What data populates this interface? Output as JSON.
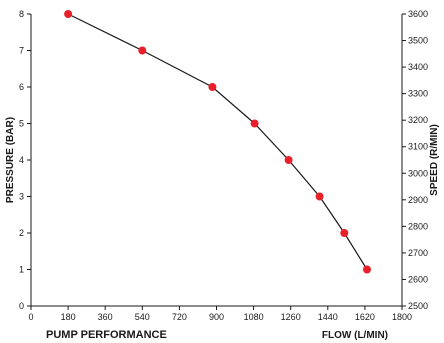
{
  "chart_data": {
    "type": "line",
    "title": "PUMP PERFORMANCE",
    "xlabel": "FLOW (L/MIN)",
    "ylabel": "PRESSURE (BAR)",
    "y2label": "SPEED (R/MIN)",
    "xlim": [
      0,
      1800
    ],
    "ylim": [
      0,
      8
    ],
    "y2lim": [
      2500,
      3600
    ],
    "xticks": [
      "0",
      "180",
      "360",
      "540",
      "720",
      "900",
      "1080",
      "1260",
      "1440",
      "1620",
      "1800"
    ],
    "yticks": [
      "0",
      "1",
      "2",
      "3",
      "4",
      "5",
      "6",
      "7",
      "8"
    ],
    "y2ticks": [
      "2500",
      "2600",
      "2700",
      "2800",
      "2900",
      "3000",
      "3100",
      "3200",
      "3300",
      "3400",
      "3500",
      "3600"
    ],
    "grid": false,
    "series": [
      {
        "x": [
          180,
          540,
          880,
          1085,
          1250,
          1400,
          1520,
          1630
        ],
        "y": [
          8,
          7,
          6,
          5,
          4,
          3,
          2,
          1
        ]
      }
    ],
    "line_color": "#1a1a1a",
    "marker_color": "#e8202a"
  }
}
